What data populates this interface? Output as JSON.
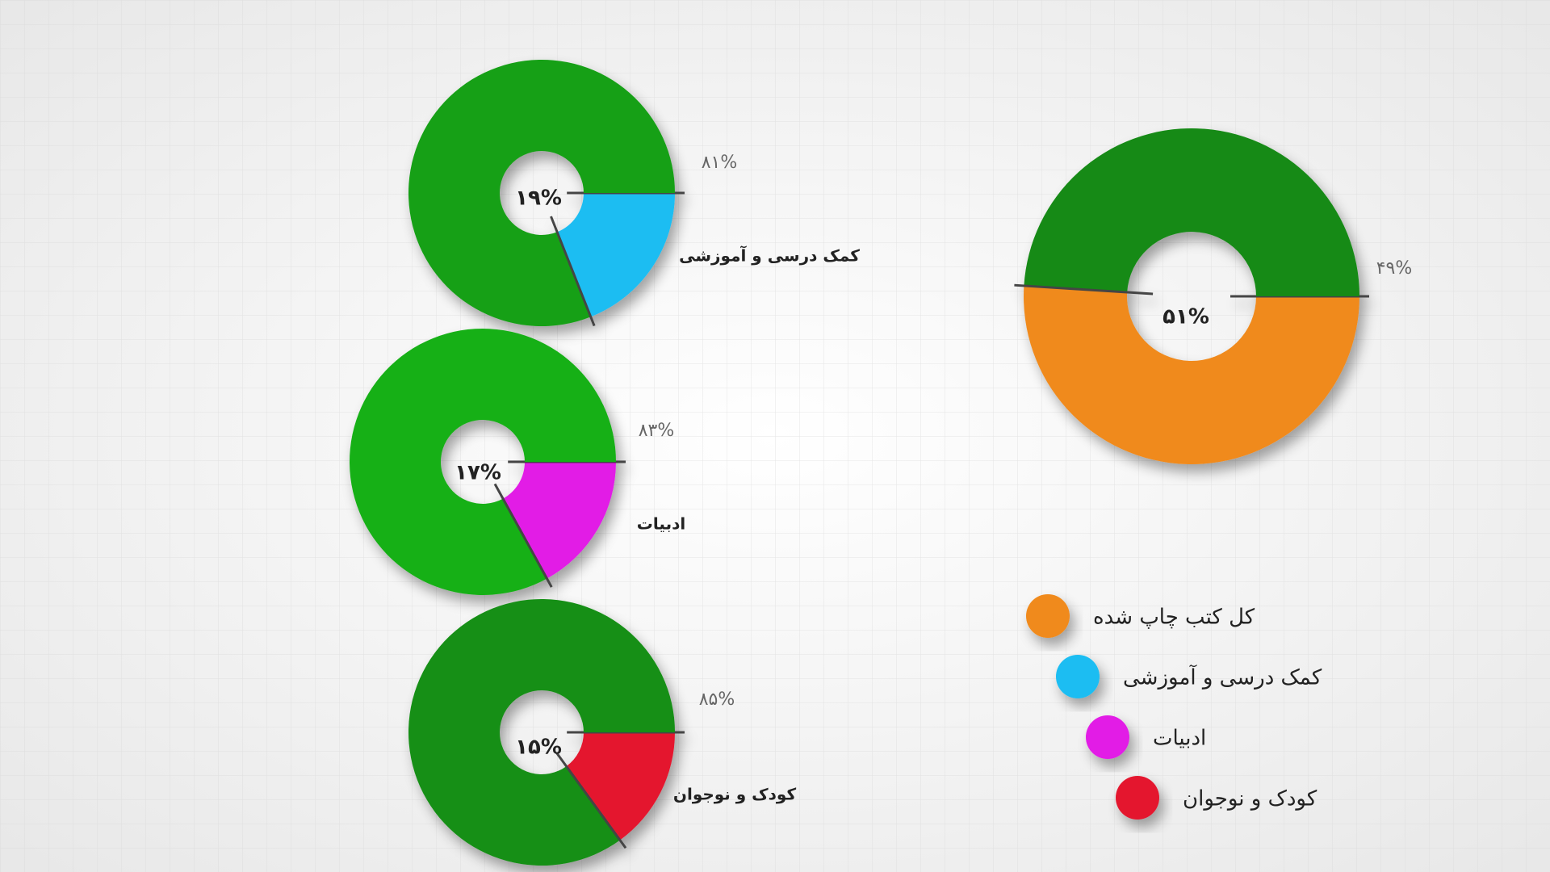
{
  "chart_data": [
    {
      "type": "donut",
      "name": "کل کتب چاپ شده",
      "values": [
        51,
        49
      ],
      "value_labels": [
        "۵۱%",
        "۴۹%"
      ],
      "colors": [
        "#f08a1c",
        "#138a13"
      ]
    },
    {
      "type": "donut",
      "name": "کمک درسی و آموزشی",
      "values": [
        19,
        81
      ],
      "value_labels": [
        "۱۹%",
        "۸۱%"
      ],
      "colors": [
        "#1bbdf2",
        "#17a017"
      ]
    },
    {
      "type": "donut",
      "name": "ادبیات",
      "values": [
        17,
        83
      ],
      "value_labels": [
        "۱۷%",
        "۸۳%"
      ],
      "colors": [
        "#e21ee6",
        "#17b017"
      ]
    },
    {
      "type": "donut",
      "name": "کودک و نوجوان",
      "values": [
        15,
        85
      ],
      "value_labels": [
        "۱۵%",
        "۸۵%"
      ],
      "colors": [
        "#e4172e",
        "#138f13"
      ]
    }
  ]
}
